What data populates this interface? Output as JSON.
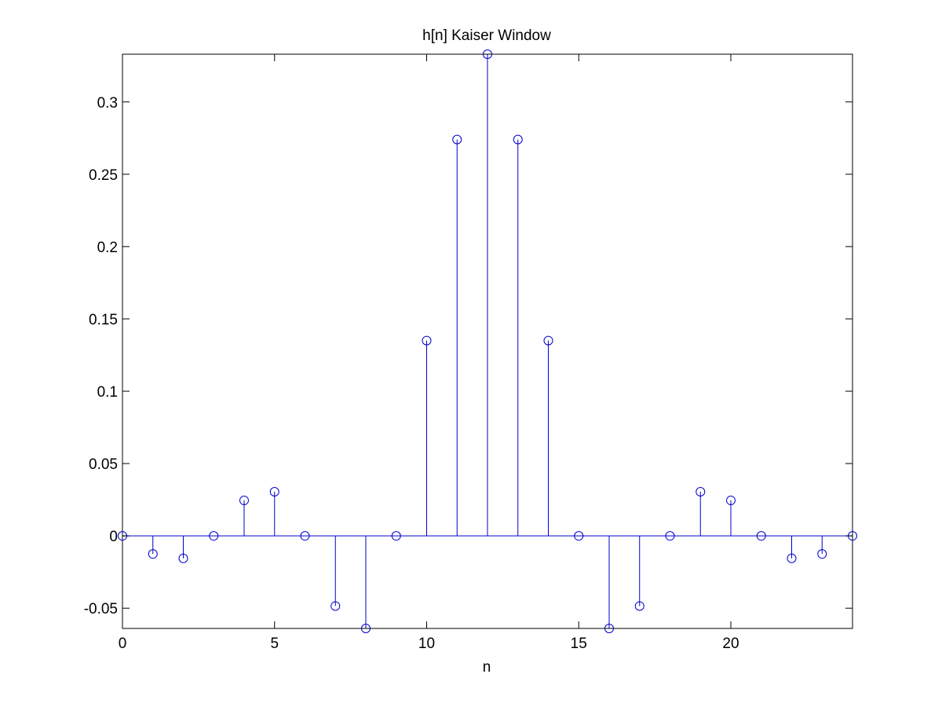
{
  "chart_data": {
    "type": "stem",
    "title": "h[n] Kaiser Window",
    "xlabel": "n",
    "ylabel": "",
    "xlim": [
      0,
      24
    ],
    "ylim": [
      -0.064,
      0.333
    ],
    "xticks": [
      0,
      5,
      10,
      15,
      20
    ],
    "xtick_labels": [
      "0",
      "5",
      "10",
      "15",
      "20"
    ],
    "yticks": [
      -0.05,
      0,
      0.05,
      0.1,
      0.15,
      0.2,
      0.25,
      0.3
    ],
    "ytick_labels": [
      "-0.05",
      "0",
      "0.05",
      "0.1",
      "0.15",
      "0.2",
      "0.25",
      "0.3"
    ],
    "grid": false,
    "x": [
      0,
      1,
      2,
      3,
      4,
      5,
      6,
      7,
      8,
      9,
      10,
      11,
      12,
      13,
      14,
      15,
      16,
      17,
      18,
      19,
      20,
      21,
      22,
      23,
      24
    ],
    "values": [
      0,
      -0.0125,
      -0.0155,
      0,
      0.0245,
      0.0305,
      0,
      -0.0485,
      -0.064,
      0,
      0.135,
      0.274,
      0.333,
      0.274,
      0.135,
      0,
      -0.064,
      -0.0485,
      0,
      0.0305,
      0.0245,
      0,
      -0.0155,
      -0.0125,
      0
    ],
    "stem_color": "#0000cc",
    "marker": "circle"
  }
}
